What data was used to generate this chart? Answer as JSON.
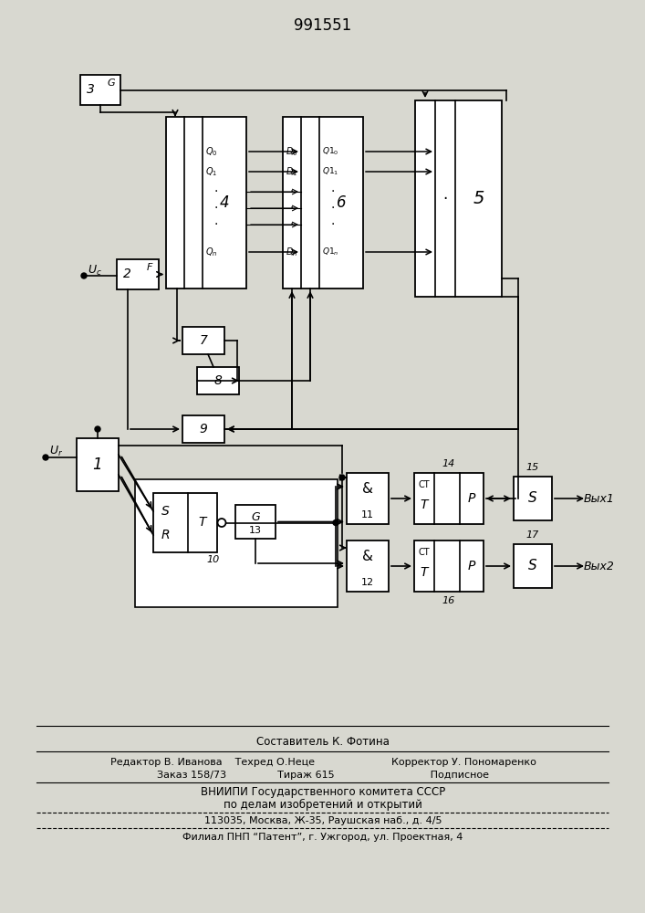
{
  "title": "991551",
  "bg_color": "#d8d8d0",
  "box_color": "#ffffff",
  "line_color": "#000000",
  "footer": {
    "line1": "Составитель К. Фотина",
    "line2": "Редактор В. Иванова    Техред О.Неце                        Корректор У. Пономаренко",
    "line3": "Заказ 158/73                Тираж 615                              Подписное",
    "line4": "ВНИИПИ Государственного комитета СССР",
    "line5": "по делам изобретений и открытий",
    "line6": "113035, Москва, Ж-35, Раушская наб., д. 4/5",
    "line7": "Филиал ПНП “Патент”, г. Ужгород, ул. Проектная, 4"
  }
}
